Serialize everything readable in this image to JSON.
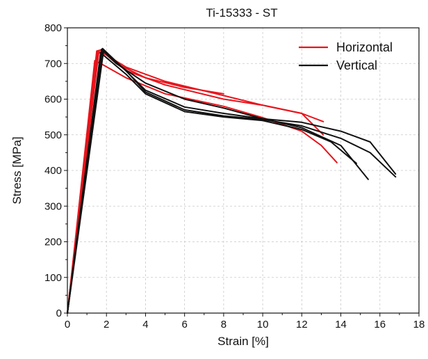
{
  "chart_data": {
    "type": "line",
    "title": "Ti-15333 - ST",
    "xlabel": "Strain [%]",
    "ylabel": "Stress [MPa]",
    "xlim": [
      0,
      18
    ],
    "ylim": [
      0,
      800
    ],
    "xticks": [
      0,
      2,
      4,
      6,
      8,
      10,
      12,
      14,
      16,
      18
    ],
    "yticks": [
      0,
      100,
      200,
      300,
      400,
      500,
      600,
      700,
      800
    ],
    "grid": true,
    "legend_position": "top-right",
    "legend": [
      {
        "label": "Horizontal",
        "color": "#e8141c"
      },
      {
        "label": "Vertical",
        "color": "#111111"
      }
    ],
    "series": [
      {
        "group": "Horizontal",
        "color": "#e8141c",
        "points": [
          [
            0,
            0
          ],
          [
            1.5,
            735
          ],
          [
            1.7,
            738
          ],
          [
            2.5,
            700
          ],
          [
            4,
            660
          ],
          [
            6,
            633
          ],
          [
            8,
            615
          ]
        ]
      },
      {
        "group": "Horizontal",
        "color": "#e8141c",
        "points": [
          [
            0,
            0
          ],
          [
            1.55,
            735
          ],
          [
            1.8,
            730
          ],
          [
            3,
            690
          ],
          [
            5,
            650
          ],
          [
            8,
            610
          ],
          [
            10,
            583
          ],
          [
            12,
            560
          ],
          [
            13.1,
            537
          ]
        ]
      },
      {
        "group": "Horizontal",
        "color": "#e8141c",
        "points": [
          [
            0,
            0
          ],
          [
            1.6,
            730
          ],
          [
            1.9,
            728
          ],
          [
            3,
            680
          ],
          [
            5,
            640
          ],
          [
            8,
            600
          ],
          [
            10,
            583
          ],
          [
            12,
            560
          ],
          [
            13.1,
            500
          ]
        ]
      },
      {
        "group": "Horizontal",
        "color": "#e8141c",
        "points": [
          [
            0,
            0
          ],
          [
            1.4,
            708
          ],
          [
            1.7,
            700
          ],
          [
            3,
            660
          ],
          [
            5,
            615
          ],
          [
            8,
            580
          ],
          [
            10,
            548
          ],
          [
            12,
            510
          ],
          [
            13,
            470
          ],
          [
            13.8,
            422
          ]
        ]
      },
      {
        "group": "Vertical",
        "color": "#111111",
        "points": [
          [
            0,
            0
          ],
          [
            1.75,
            740
          ],
          [
            2.5,
            700
          ],
          [
            4,
            645
          ],
          [
            6,
            600
          ],
          [
            8,
            575
          ],
          [
            10,
            545
          ],
          [
            12,
            520
          ],
          [
            14,
            470
          ],
          [
            15.4,
            375
          ]
        ]
      },
      {
        "group": "Vertical",
        "color": "#111111",
        "points": [
          [
            0,
            0
          ],
          [
            1.8,
            742
          ],
          [
            2.8,
            690
          ],
          [
            4,
            625
          ],
          [
            6,
            578
          ],
          [
            8,
            560
          ],
          [
            10,
            545
          ],
          [
            12,
            535
          ],
          [
            14,
            510
          ],
          [
            15.5,
            480
          ],
          [
            16.8,
            390
          ]
        ]
      },
      {
        "group": "Vertical",
        "color": "#111111",
        "points": [
          [
            0,
            0
          ],
          [
            1.85,
            735
          ],
          [
            3,
            680
          ],
          [
            4,
            620
          ],
          [
            6,
            570
          ],
          [
            8,
            553
          ],
          [
            10,
            543
          ],
          [
            12,
            525
          ],
          [
            14,
            490
          ],
          [
            15.5,
            450
          ],
          [
            16.8,
            382
          ]
        ]
      },
      {
        "group": "Vertical",
        "color": "#111111",
        "points": [
          [
            0,
            0
          ],
          [
            1.7,
            730
          ],
          [
            3,
            670
          ],
          [
            4,
            615
          ],
          [
            6,
            565
          ],
          [
            8,
            550
          ],
          [
            10,
            540
          ],
          [
            12,
            515
          ],
          [
            13.5,
            480
          ],
          [
            14.8,
            420
          ]
        ]
      }
    ]
  }
}
